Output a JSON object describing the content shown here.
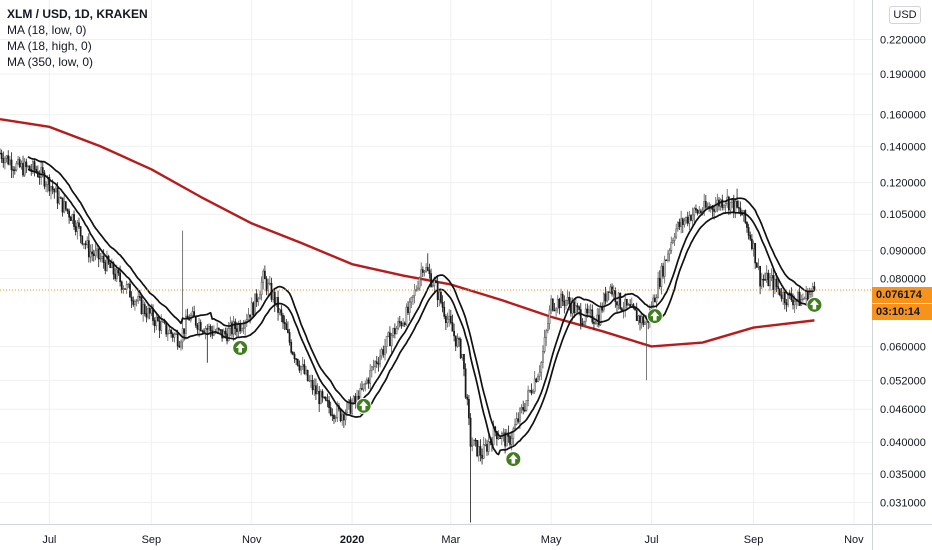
{
  "header": {
    "symbol_line": "XLM / USD, 1D, KRAKEN",
    "indicators": [
      "MA (18, low, 0)",
      "MA (18, high, 0)",
      "MA (350, low, 0)"
    ]
  },
  "currency_badge": "USD",
  "last_price_label": "0.076174",
  "countdown_label": "03:10:14",
  "colors": {
    "candle_up": "#5b5b5b",
    "candle_down": "#1a1a1a",
    "ma_short": "#111111",
    "ma_long": "#b71c1c",
    "price_tag": "#f7931a",
    "signal_arrow": "#3f7d1f"
  },
  "chart_data": {
    "type": "candlestick",
    "yscale": "log",
    "ylim": [
      0.0283,
      0.26
    ],
    "y_ticks": [
      "0.220000",
      "0.190000",
      "0.160000",
      "0.140000",
      "0.120000",
      "0.105000",
      "0.090000",
      "0.080000",
      "0.060000",
      "0.052000",
      "0.046000",
      "0.040000",
      "0.035000",
      "0.031000"
    ],
    "x_ticks": [
      "Jul",
      "Sep",
      "Nov",
      "2020",
      "Mar",
      "May",
      "Jul",
      "Sep",
      "Nov"
    ],
    "x_tick_dates": [
      "2019-07-01",
      "2019-09-01",
      "2019-11-01",
      "2020-01-01",
      "2020-03-01",
      "2020-05-01",
      "2020-07-01",
      "2020-09-01",
      "2020-11-01"
    ],
    "x_range": [
      "2019-06-01",
      "2020-11-12"
    ],
    "last_close": 0.076174,
    "close_path": [
      [
        "2019-06-01",
        0.136
      ],
      [
        "2019-06-12",
        0.128
      ],
      [
        "2019-06-22",
        0.127
      ],
      [
        "2019-07-01",
        0.12
      ],
      [
        "2019-07-08",
        0.11
      ],
      [
        "2019-07-15",
        0.104
      ],
      [
        "2019-07-25",
        0.09
      ],
      [
        "2019-08-05",
        0.085
      ],
      [
        "2019-08-15",
        0.078
      ],
      [
        "2019-08-26",
        0.071
      ],
      [
        "2019-09-08",
        0.065
      ],
      [
        "2019-09-18",
        0.062
      ],
      [
        "2019-09-24",
        0.068
      ],
      [
        "2019-10-01",
        0.066
      ],
      [
        "2019-10-08",
        0.064
      ],
      [
        "2019-10-15",
        0.063
      ],
      [
        "2019-10-25",
        0.066
      ],
      [
        "2019-11-02",
        0.071
      ],
      [
        "2019-11-08",
        0.08
      ],
      [
        "2019-11-15",
        0.073
      ],
      [
        "2019-11-25",
        0.06
      ],
      [
        "2019-12-05",
        0.052
      ],
      [
        "2019-12-15",
        0.047
      ],
      [
        "2019-12-25",
        0.045
      ],
      [
        "2020-01-05",
        0.048
      ],
      [
        "2020-01-15",
        0.056
      ],
      [
        "2020-01-25",
        0.063
      ],
      [
        "2020-02-05",
        0.07
      ],
      [
        "2020-02-13",
        0.085
      ],
      [
        "2020-02-20",
        0.078
      ],
      [
        "2020-03-01",
        0.065
      ],
      [
        "2020-03-08",
        0.058
      ],
      [
        "2020-03-13",
        0.04
      ],
      [
        "2020-03-20",
        0.038
      ],
      [
        "2020-03-28",
        0.042
      ],
      [
        "2020-04-05",
        0.04
      ],
      [
        "2020-04-15",
        0.047
      ],
      [
        "2020-04-25",
        0.056
      ],
      [
        "2020-05-01",
        0.072
      ],
      [
        "2020-05-10",
        0.073
      ],
      [
        "2020-05-20",
        0.068
      ],
      [
        "2020-05-30",
        0.068
      ],
      [
        "2020-06-05",
        0.078
      ],
      [
        "2020-06-12",
        0.072
      ],
      [
        "2020-06-20",
        0.069
      ],
      [
        "2020-06-28",
        0.066
      ],
      [
        "2020-07-06",
        0.08
      ],
      [
        "2020-07-15",
        0.098
      ],
      [
        "2020-07-25",
        0.105
      ],
      [
        "2020-08-05",
        0.108
      ],
      [
        "2020-08-15",
        0.112
      ],
      [
        "2020-08-25",
        0.105
      ],
      [
        "2020-08-31",
        0.094
      ],
      [
        "2020-09-05",
        0.08
      ],
      [
        "2020-09-12",
        0.079
      ],
      [
        "2020-09-20",
        0.074
      ],
      [
        "2020-09-30",
        0.073
      ],
      [
        "2020-10-08",
        0.076174
      ]
    ],
    "wicks": [
      {
        "date": "2019-09-20",
        "high": 0.098
      },
      {
        "date": "2019-10-05",
        "low": 0.056
      },
      {
        "date": "2020-03-13",
        "low": 0.0285
      },
      {
        "date": "2020-02-16",
        "high": 0.089
      },
      {
        "date": "2020-06-28",
        "low": 0.052
      },
      {
        "date": "2020-08-22",
        "high": 0.117
      }
    ],
    "series": [
      {
        "name": "MA (18, low, 0)",
        "color": "#111111"
      },
      {
        "name": "MA (18, high, 0)",
        "color": "#111111"
      },
      {
        "name": "MA (350, low, 0)",
        "color": "#b71c1c",
        "points": [
          [
            "2019-06-01",
            0.157
          ],
          [
            "2019-07-01",
            0.152
          ],
          [
            "2019-08-01",
            0.14
          ],
          [
            "2019-09-01",
            0.127
          ],
          [
            "2019-10-01",
            0.113
          ],
          [
            "2019-11-01",
            0.101
          ],
          [
            "2019-12-01",
            0.093
          ],
          [
            "2020-01-01",
            0.085
          ],
          [
            "2020-02-01",
            0.081
          ],
          [
            "2020-03-01",
            0.078
          ],
          [
            "2020-04-01",
            0.073
          ],
          [
            "2020-05-01",
            0.068
          ],
          [
            "2020-06-01",
            0.064
          ],
          [
            "2020-07-01",
            0.06
          ],
          [
            "2020-08-01",
            0.061
          ],
          [
            "2020-09-01",
            0.065
          ],
          [
            "2020-10-08",
            0.067
          ]
        ]
      }
    ],
    "signals": [
      "2019-10-25",
      "2020-01-08",
      "2020-04-08",
      "2020-07-03",
      "2020-10-10"
    ]
  }
}
